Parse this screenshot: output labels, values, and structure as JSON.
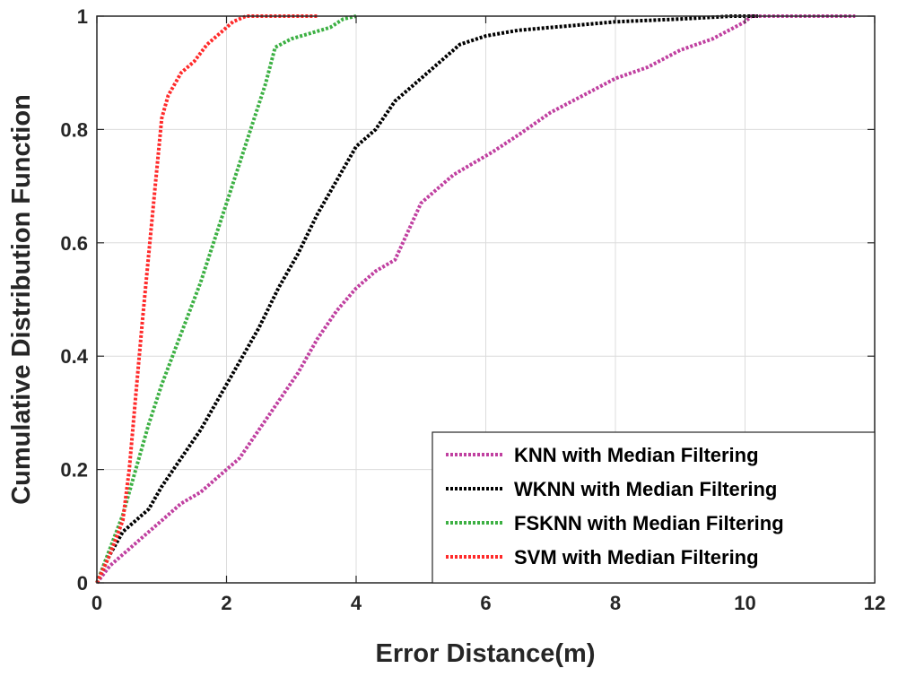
{
  "chart_data": {
    "type": "line",
    "title": "",
    "xlabel": "Error Distance(m)",
    "ylabel": "Cumulative Distribution Function",
    "xlim": [
      0,
      12
    ],
    "ylim": [
      0,
      1
    ],
    "grid": true,
    "legend_position": "bottom-right",
    "xticks": [
      0,
      2,
      4,
      6,
      8,
      10,
      12
    ],
    "xtick_labels": [
      "0",
      "2",
      "4",
      "6",
      "8",
      "10",
      "12"
    ],
    "yticks": [
      0,
      0.2,
      0.4,
      0.6,
      0.8,
      1
    ],
    "ytick_labels": [
      "0",
      "0.2",
      "0.4",
      "0.6",
      "0.8",
      "1"
    ],
    "series": [
      {
        "name": "KNN with Median Filtering",
        "color": "#c040a0",
        "x": [
          0,
          0.2,
          0.4,
          0.7,
          1.0,
          1.3,
          1.6,
          1.9,
          2.2,
          2.5,
          2.8,
          3.1,
          3.4,
          3.7,
          4.0,
          4.3,
          4.6,
          4.8,
          5.0,
          5.2,
          5.5,
          5.8,
          6.1,
          6.5,
          7.0,
          7.5,
          8.0,
          8.5,
          9.0,
          9.5,
          10.0,
          10.1,
          11.0,
          11.7
        ],
        "y": [
          0,
          0.03,
          0.05,
          0.08,
          0.11,
          0.14,
          0.16,
          0.19,
          0.22,
          0.27,
          0.32,
          0.37,
          0.43,
          0.48,
          0.52,
          0.55,
          0.57,
          0.62,
          0.67,
          0.69,
          0.72,
          0.74,
          0.76,
          0.79,
          0.83,
          0.86,
          0.89,
          0.91,
          0.94,
          0.96,
          0.99,
          1.0,
          1.0,
          1.0
        ]
      },
      {
        "name": "WKNN with Median Filtering",
        "color": "#000000",
        "x": [
          0,
          0.2,
          0.4,
          0.6,
          0.8,
          1.0,
          1.3,
          1.6,
          1.9,
          2.2,
          2.5,
          2.8,
          3.1,
          3.4,
          3.7,
          4.0,
          4.3,
          4.6,
          5.0,
          5.3,
          5.6,
          6.0,
          6.5,
          7.0,
          7.5,
          8.0,
          9.0,
          9.8,
          10.2
        ],
        "y": [
          0,
          0.05,
          0.09,
          0.11,
          0.13,
          0.17,
          0.22,
          0.27,
          0.33,
          0.39,
          0.45,
          0.52,
          0.58,
          0.65,
          0.71,
          0.77,
          0.8,
          0.85,
          0.89,
          0.92,
          0.95,
          0.965,
          0.975,
          0.98,
          0.985,
          0.99,
          0.995,
          1.0,
          1.0
        ]
      },
      {
        "name": "FSKNN with Median Filtering",
        "color": "#3cb043",
        "x": [
          0,
          0.2,
          0.4,
          0.6,
          0.8,
          1.0,
          1.2,
          1.4,
          1.6,
          1.8,
          2.0,
          2.2,
          2.4,
          2.6,
          2.75,
          3.0,
          3.3,
          3.6,
          3.8,
          4.0
        ],
        "y": [
          0,
          0.06,
          0.12,
          0.2,
          0.28,
          0.35,
          0.41,
          0.47,
          0.53,
          0.6,
          0.67,
          0.74,
          0.81,
          0.88,
          0.945,
          0.96,
          0.97,
          0.98,
          0.995,
          1.0
        ]
      },
      {
        "name": "SVM with Median Filtering",
        "color": "#ff2a2a",
        "x": [
          0,
          0.2,
          0.4,
          0.5,
          0.6,
          0.7,
          0.8,
          0.9,
          1.0,
          1.1,
          1.3,
          1.5,
          1.7,
          1.9,
          2.1,
          2.3,
          2.7,
          3.0,
          3.4
        ],
        "y": [
          0,
          0.05,
          0.11,
          0.2,
          0.33,
          0.46,
          0.58,
          0.7,
          0.82,
          0.86,
          0.9,
          0.92,
          0.95,
          0.97,
          0.99,
          1.0,
          1.0,
          1.0,
          1.0
        ]
      }
    ]
  }
}
